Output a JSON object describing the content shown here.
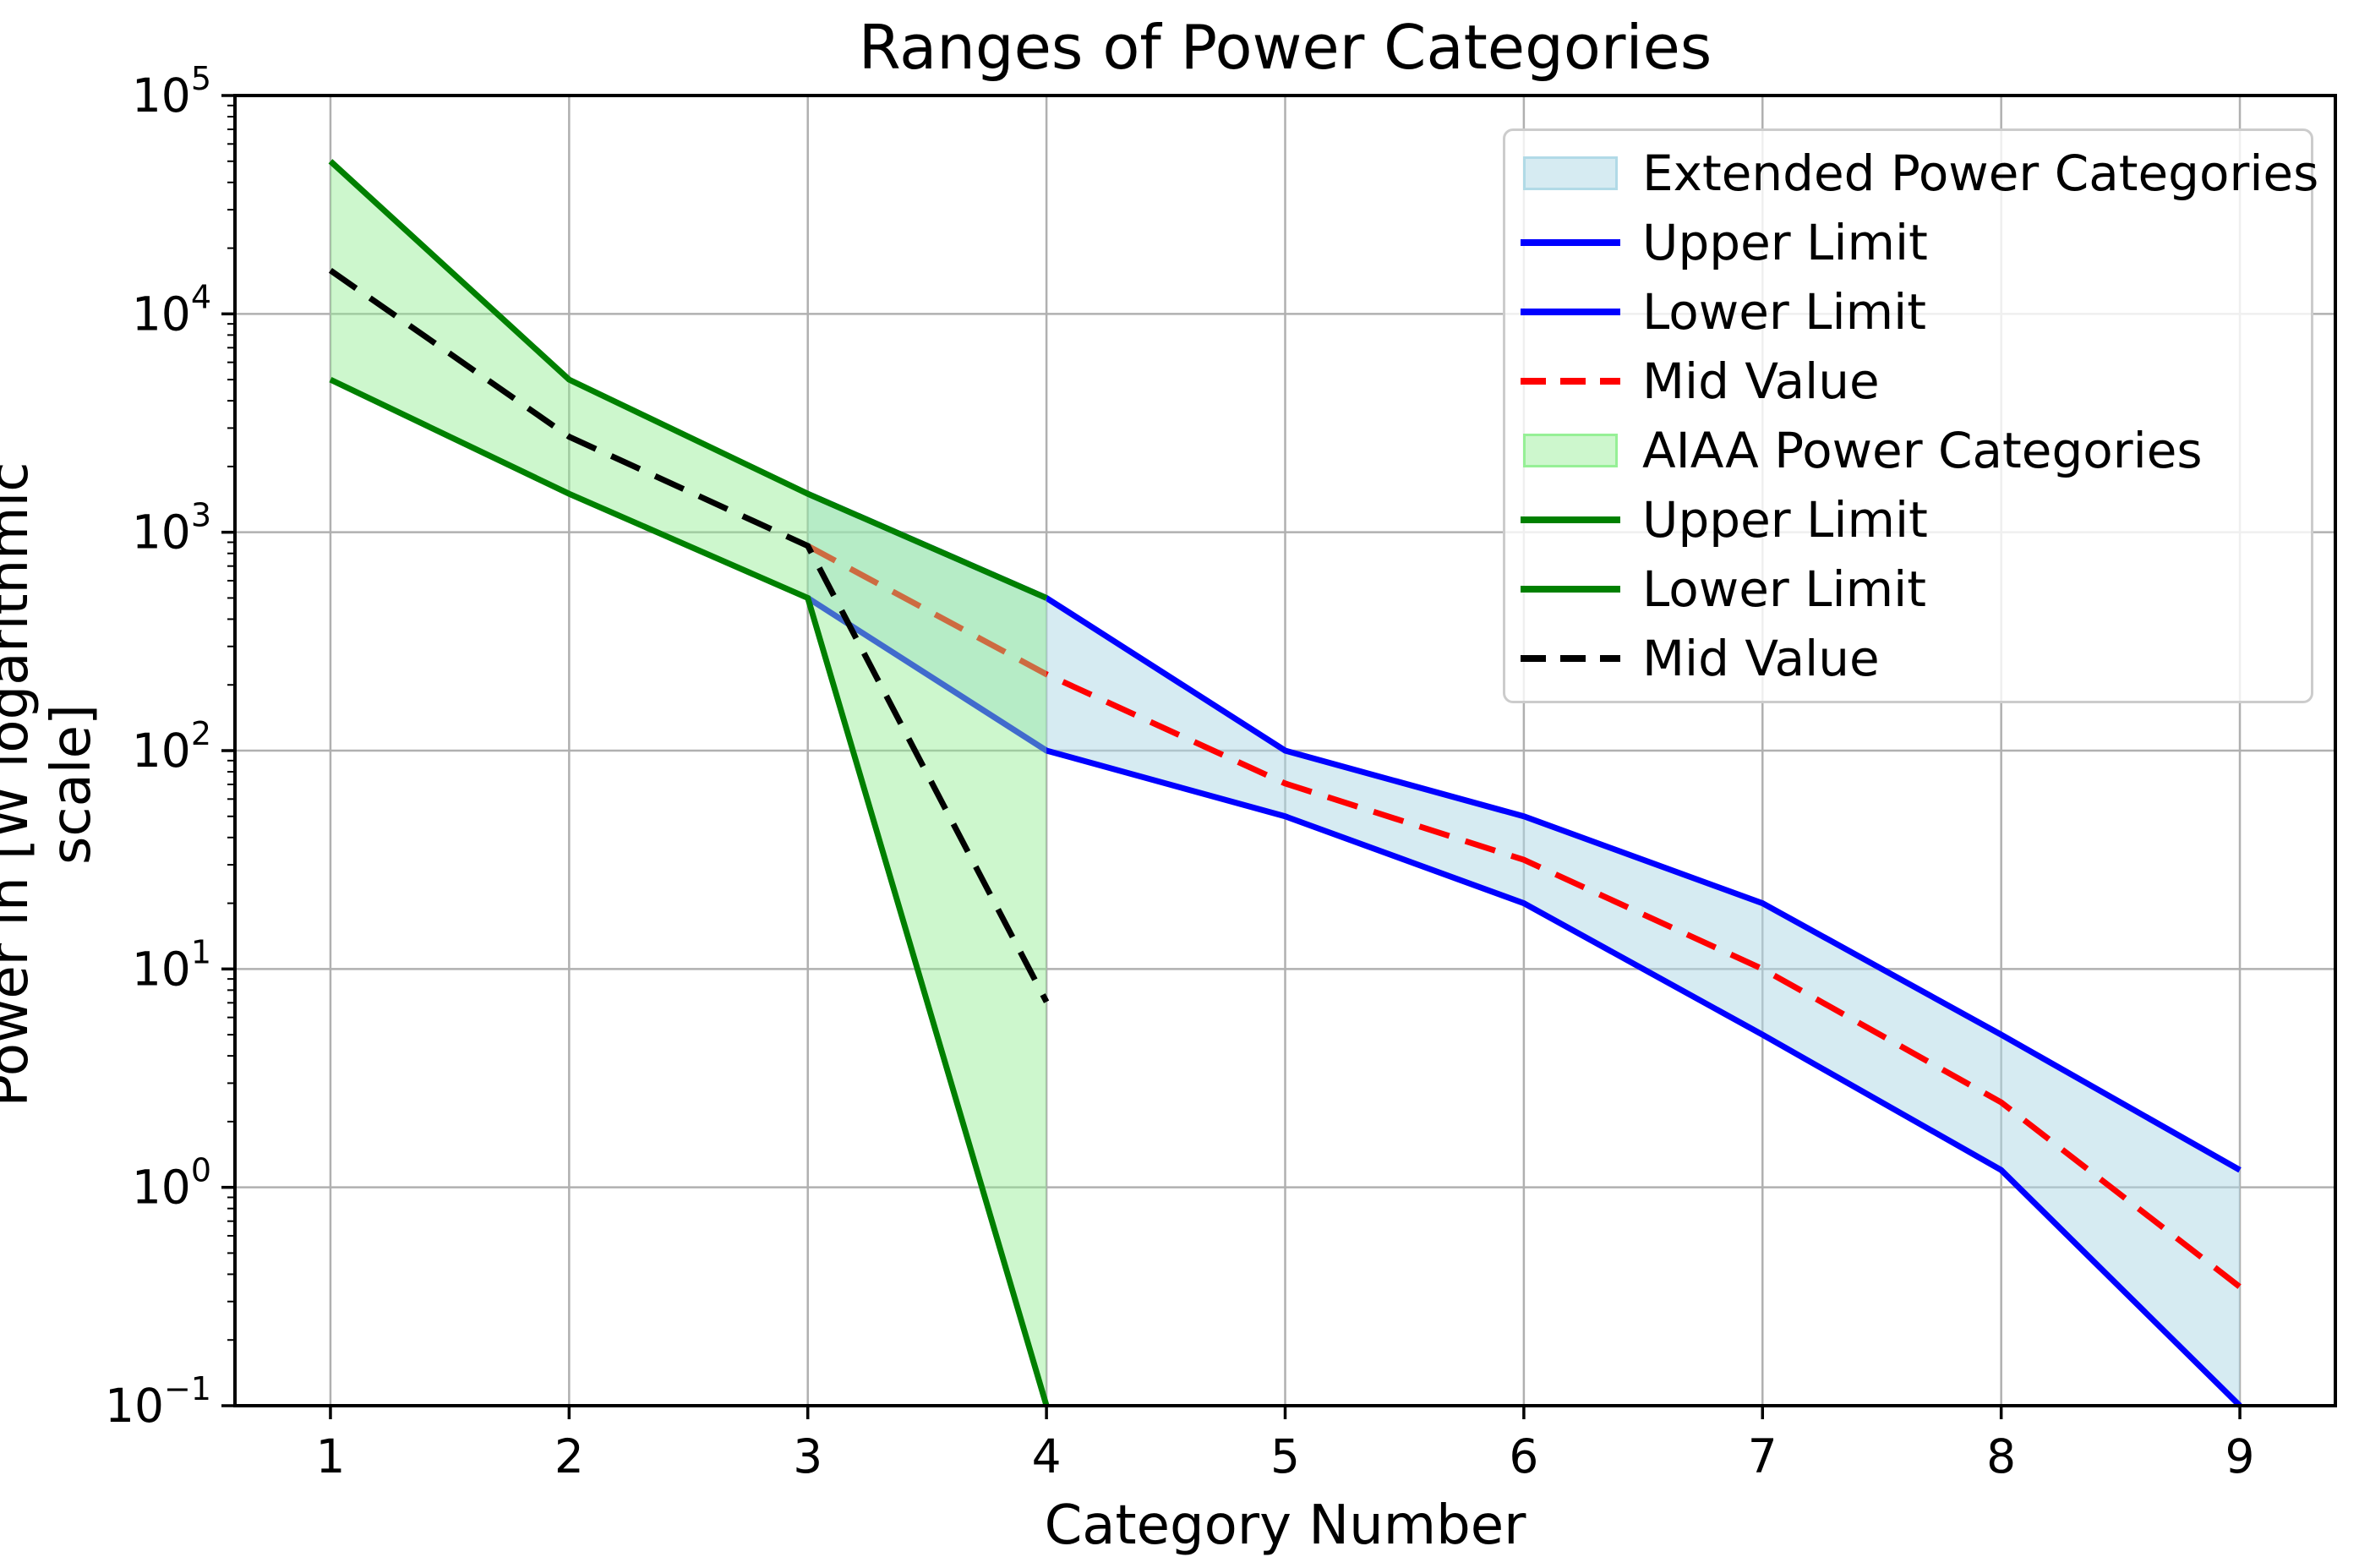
{
  "title": "Ranges of Power Categories",
  "axes": {
    "xlabel": "Category Number",
    "ylabel": "Power in [W logarithmic scale]",
    "x_ticks": [
      "1",
      "2",
      "3",
      "4",
      "5",
      "6",
      "7",
      "8",
      "9"
    ],
    "y_tick_exponents": [
      "5",
      "4",
      "3",
      "2",
      "1",
      "0",
      "−1"
    ],
    "y_tick_base": "10"
  },
  "legend": {
    "items": [
      {
        "label": "Extended Power Categories",
        "swatch": "patch",
        "color": "#ADD8E6",
        "alpha": 0.5
      },
      {
        "label": "Upper Limit",
        "swatch": "line",
        "color": "#0000FF"
      },
      {
        "label": "Lower Limit",
        "swatch": "line",
        "color": "#0000FF"
      },
      {
        "label": "Mid Value",
        "swatch": "dash",
        "color": "#FF0000"
      },
      {
        "label": "AIAA Power Categories",
        "swatch": "patch",
        "color": "#90EE90",
        "alpha": 0.45
      },
      {
        "label": "Upper Limit",
        "swatch": "line",
        "color": "#008000"
      },
      {
        "label": "Lower Limit",
        "swatch": "line",
        "color": "#008000"
      },
      {
        "label": "Mid Value",
        "swatch": "dash",
        "color": "#000000"
      }
    ]
  },
  "colors": {
    "extended_line": "#0000FF",
    "extended_fill": "#ADD8E6",
    "extended_mid": "#FF0000",
    "aiaa_line": "#008000",
    "aiaa_fill": "#90EE90",
    "aiaa_mid": "#000000",
    "grid": "#B0B0B0",
    "spine": "#000000",
    "background": "#FFFFFF"
  },
  "chart_data": {
    "type": "area",
    "title": "Ranges of Power Categories",
    "xlabel": "Category Number",
    "ylabel": "Power in [W logarithmic scale]",
    "yscale": "log",
    "xlim": [
      0.6,
      9.4
    ],
    "ylim": [
      0.1,
      100000
    ],
    "grid": true,
    "legend_position": "upper right",
    "series": [
      {
        "name": "Extended Power Categories",
        "role": "band",
        "fill": "#ADD8E6",
        "fill_alpha": 0.5,
        "x": [
          3,
          4,
          5,
          6,
          7,
          8,
          9
        ],
        "upper": [
          1500,
          500,
          100,
          50,
          20,
          5,
          1.2
        ],
        "lower": [
          500,
          100,
          50,
          20,
          5,
          1.2,
          0.1
        ]
      },
      {
        "name": "Upper Limit (Extended)",
        "role": "line",
        "color": "#0000FF",
        "style": "solid",
        "x": [
          3,
          4,
          5,
          6,
          7,
          8,
          9
        ],
        "y": [
          1500,
          500,
          100,
          50,
          20,
          5,
          1.2
        ]
      },
      {
        "name": "Lower Limit (Extended)",
        "role": "line",
        "color": "#0000FF",
        "style": "solid",
        "x": [
          3,
          4,
          5,
          6,
          7,
          8,
          9
        ],
        "y": [
          500,
          100,
          50,
          20,
          5,
          1.2,
          0.1
        ]
      },
      {
        "name": "Mid Value (Extended)",
        "role": "line",
        "color": "#FF0000",
        "style": "dashed",
        "x": [
          3,
          4,
          5,
          6,
          7,
          8,
          9
        ],
        "y": [
          866.03,
          223.61,
          70.71,
          31.62,
          10.0,
          2.45,
          0.35
        ]
      },
      {
        "name": "AIAA Power Categories",
        "role": "band",
        "fill": "#90EE90",
        "fill_alpha": 0.45,
        "x": [
          1,
          2,
          3,
          4
        ],
        "upper": [
          50000,
          5000,
          1500,
          500
        ],
        "lower": [
          5000,
          1500,
          500,
          0.1
        ]
      },
      {
        "name": "Upper Limit (AIAA)",
        "role": "line",
        "color": "#008000",
        "style": "solid",
        "x": [
          1,
          2,
          3,
          4
        ],
        "y": [
          50000,
          5000,
          1500,
          500
        ]
      },
      {
        "name": "Lower Limit (AIAA)",
        "role": "line",
        "color": "#008000",
        "style": "solid",
        "x": [
          1,
          2,
          3,
          4
        ],
        "y": [
          5000,
          1500,
          500,
          0.1
        ]
      },
      {
        "name": "Mid Value (AIAA)",
        "role": "line",
        "color": "#000000",
        "style": "dashed",
        "x": [
          1,
          2,
          3,
          4
        ],
        "y": [
          15811.39,
          2738.61,
          866.03,
          7.07
        ]
      }
    ]
  }
}
